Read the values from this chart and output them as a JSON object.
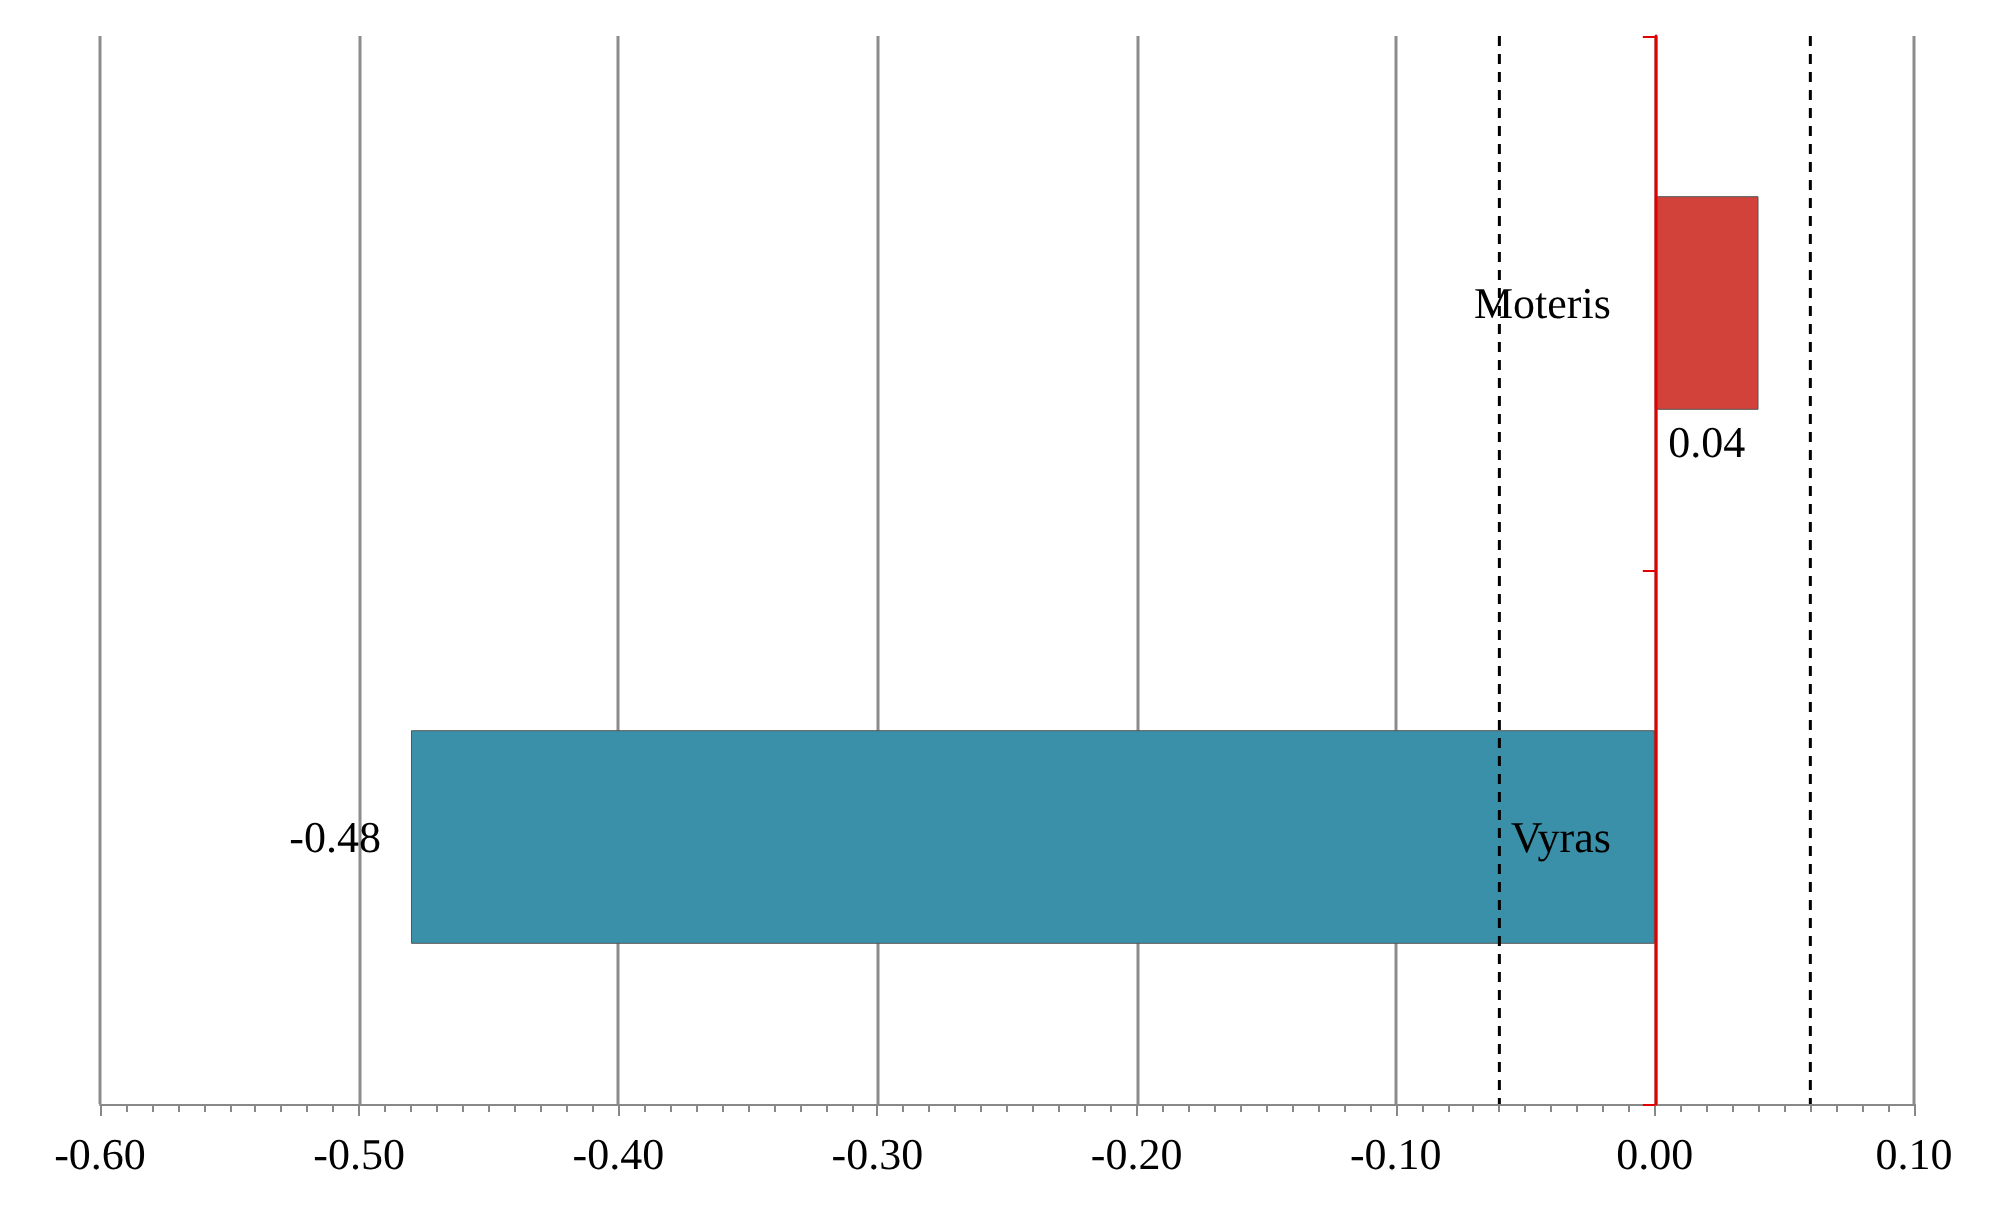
{
  "chart_data": {
    "type": "bar",
    "orientation": "horizontal",
    "categories": [
      "Moteris",
      "Vyras"
    ],
    "values": [
      0.04,
      -0.48
    ],
    "colors": [
      "#d2423b",
      "#3a90a8"
    ],
    "xlim": [
      -0.6,
      0.1
    ],
    "xticks": [
      {
        "value": -0.6,
        "label": "-0.60"
      },
      {
        "value": -0.5,
        "label": "-0.50"
      },
      {
        "value": -0.4,
        "label": "-0.40"
      },
      {
        "value": -0.3,
        "label": "-0.30"
      },
      {
        "value": -0.2,
        "label": "-0.20"
      },
      {
        "value": -0.1,
        "label": "-0.10"
      },
      {
        "value": 0,
        "label": "0.00"
      },
      {
        "value": 0.1,
        "label": "0.10"
      }
    ],
    "ref_lines": [
      {
        "axis": "x",
        "value": -0.06,
        "color": "#000000",
        "line_style": "dashed"
      },
      {
        "axis": "x",
        "value": 0.06,
        "color": "#000000",
        "line_style": "dashed"
      }
    ],
    "data_labels": true,
    "grid": "x"
  }
}
